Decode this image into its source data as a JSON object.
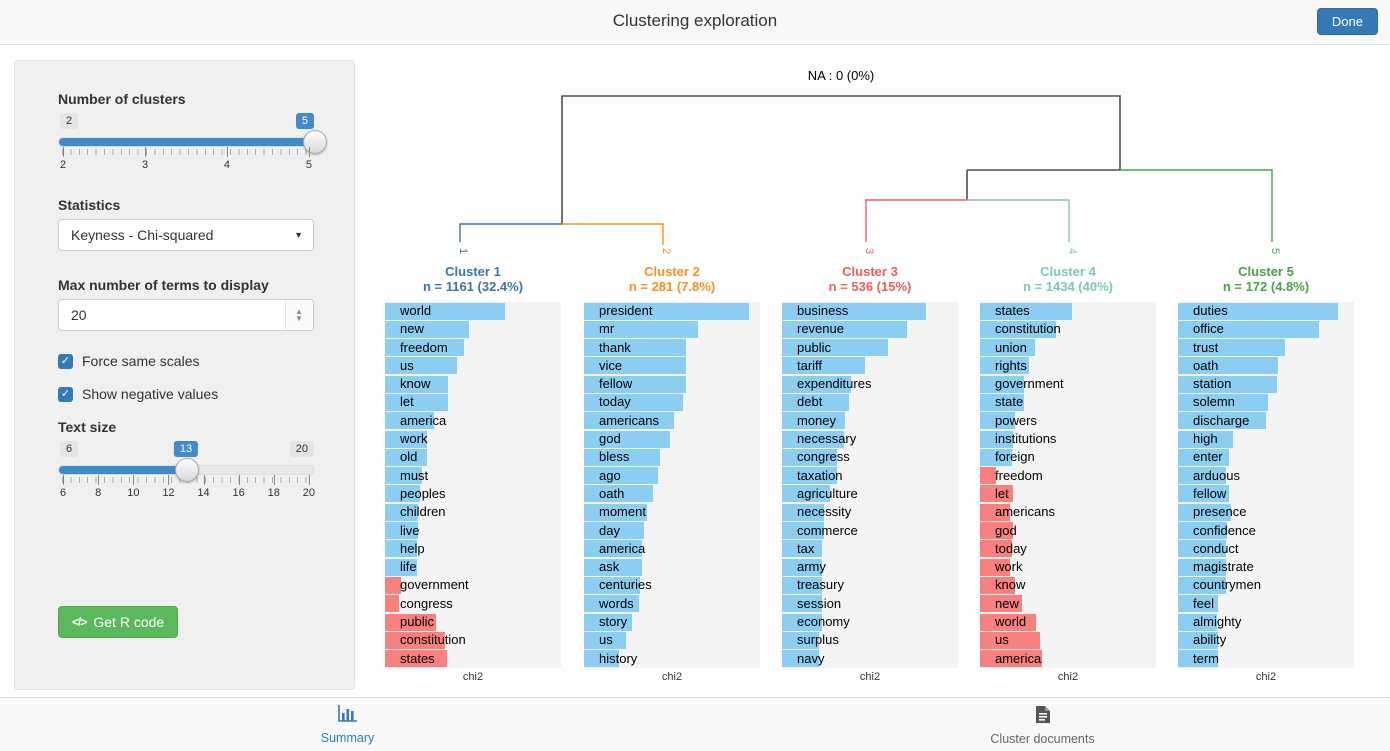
{
  "header": {
    "title": "Clustering exploration",
    "done_label": "Done"
  },
  "sidebar": {
    "clusters_slider": {
      "label": "Number of clusters",
      "min_badge": "2",
      "value_badge": "5",
      "tick_labels": [
        "2",
        "3",
        "4",
        "5"
      ],
      "fill_percent": 100,
      "handle_percent": 100
    },
    "statistics": {
      "label": "Statistics",
      "value": "Keyness - Chi-squared"
    },
    "max_terms": {
      "label": "Max number of terms to display",
      "value": "20"
    },
    "checkboxes": [
      {
        "label": "Force same scales",
        "checked": true
      },
      {
        "label": "Show negative values",
        "checked": true
      }
    ],
    "text_size_slider": {
      "label": "Text size",
      "min_badge": "6",
      "value_badge": "13",
      "max_badge": "20",
      "tick_labels": [
        "6",
        "8",
        "10",
        "12",
        "14",
        "16",
        "18",
        "20"
      ],
      "fill_percent": 50,
      "handle_percent": 50
    },
    "r_code_button": {
      "label": "Get R code",
      "icon": "</>"
    }
  },
  "dendrogram": {
    "na_label": "NA : 0 (0%)",
    "line_color": "#4d4d4d"
  },
  "chart_data": {
    "type": "bar",
    "xlabel": "chi2",
    "note": "horizontal keyness bar charts, one panel per cluster, shared x scale; values are approximate chi2 bar lengths as percent of panel width; negative values drawn red",
    "positive_color": "#8bcef2",
    "negative_color": "#f8807e",
    "clusters": [
      {
        "name": "Cluster 1",
        "n_label": "n = 1161 (32.4%)",
        "leaf": "1",
        "color": "#4273a9",
        "terms": [
          {
            "t": "world",
            "v": 68
          },
          {
            "t": "new",
            "v": 48
          },
          {
            "t": "freedom",
            "v": 45
          },
          {
            "t": "us",
            "v": 41
          },
          {
            "t": "know",
            "v": 36
          },
          {
            "t": "let",
            "v": 36
          },
          {
            "t": "america",
            "v": 28
          },
          {
            "t": "work",
            "v": 24
          },
          {
            "t": "old",
            "v": 24
          },
          {
            "t": "must",
            "v": 21
          },
          {
            "t": "peoples",
            "v": 20
          },
          {
            "t": "children",
            "v": 19
          },
          {
            "t": "live",
            "v": 19
          },
          {
            "t": "help",
            "v": 18
          },
          {
            "t": "life",
            "v": 18
          },
          {
            "t": "government",
            "v": -9
          },
          {
            "t": "congress",
            "v": -8
          },
          {
            "t": "public",
            "v": -29
          },
          {
            "t": "constitution",
            "v": -34
          },
          {
            "t": "states",
            "v": -35
          }
        ]
      },
      {
        "name": "Cluster 2",
        "n_label": "n = 281 (7.8%)",
        "leaf": "2",
        "color": "#f5911e",
        "terms": [
          {
            "t": "president",
            "v": 94
          },
          {
            "t": "mr",
            "v": 65
          },
          {
            "t": "thank",
            "v": 58
          },
          {
            "t": "vice",
            "v": 58
          },
          {
            "t": "fellow",
            "v": 58
          },
          {
            "t": "today",
            "v": 56
          },
          {
            "t": "americans",
            "v": 51
          },
          {
            "t": "god",
            "v": 49
          },
          {
            "t": "bless",
            "v": 43
          },
          {
            "t": "ago",
            "v": 42
          },
          {
            "t": "oath",
            "v": 39
          },
          {
            "t": "moment",
            "v": 36
          },
          {
            "t": "day",
            "v": 34
          },
          {
            "t": "america",
            "v": 33
          },
          {
            "t": "ask",
            "v": 33
          },
          {
            "t": "centuries",
            "v": 32
          },
          {
            "t": "words",
            "v": 31
          },
          {
            "t": "story",
            "v": 27
          },
          {
            "t": "us",
            "v": 24
          },
          {
            "t": "history",
            "v": 20
          }
        ]
      },
      {
        "name": "Cluster 3",
        "n_label": "n = 536 (15%)",
        "leaf": "3",
        "color": "#ee5c5c",
        "terms": [
          {
            "t": "business",
            "v": 82
          },
          {
            "t": "revenue",
            "v": 71
          },
          {
            "t": "public",
            "v": 60
          },
          {
            "t": "tariff",
            "v": 47
          },
          {
            "t": "expenditures",
            "v": 39
          },
          {
            "t": "debt",
            "v": 38
          },
          {
            "t": "money",
            "v": 36
          },
          {
            "t": "necessary",
            "v": 35
          },
          {
            "t": "congress",
            "v": 31
          },
          {
            "t": "taxation",
            "v": 31
          },
          {
            "t": "agriculture",
            "v": 27
          },
          {
            "t": "necessity",
            "v": 24
          },
          {
            "t": "commerce",
            "v": 24
          },
          {
            "t": "tax",
            "v": 23
          },
          {
            "t": "army",
            "v": 23
          },
          {
            "t": "treasury",
            "v": 23
          },
          {
            "t": "session",
            "v": 23
          },
          {
            "t": "economy",
            "v": 23
          },
          {
            "t": "surplus",
            "v": 21
          },
          {
            "t": "navy",
            "v": 21
          }
        ]
      },
      {
        "name": "Cluster 4",
        "n_label": "n = 1434 (40%)",
        "leaf": "4",
        "color": "#7ec6bc",
        "terms": [
          {
            "t": "states",
            "v": 52
          },
          {
            "t": "constitution",
            "v": 43
          },
          {
            "t": "union",
            "v": 31
          },
          {
            "t": "rights",
            "v": 28
          },
          {
            "t": "government",
            "v": 25
          },
          {
            "t": "state",
            "v": 25
          },
          {
            "t": "powers",
            "v": 20
          },
          {
            "t": "institutions",
            "v": 19
          },
          {
            "t": "foreign",
            "v": 18
          },
          {
            "t": "freedom",
            "v": -9
          },
          {
            "t": "let",
            "v": -19
          },
          {
            "t": "americans",
            "v": -17
          },
          {
            "t": "god",
            "v": -19
          },
          {
            "t": "today",
            "v": -18
          },
          {
            "t": "work",
            "v": -17
          },
          {
            "t": "know",
            "v": -20
          },
          {
            "t": "new",
            "v": -24
          },
          {
            "t": "world",
            "v": -32
          },
          {
            "t": "us",
            "v": -34
          },
          {
            "t": "america",
            "v": -35
          }
        ]
      },
      {
        "name": "Cluster 5",
        "n_label": "n = 172 (4.8%)",
        "leaf": "5",
        "color": "#4ba04e",
        "terms": [
          {
            "t": "duties",
            "v": 91
          },
          {
            "t": "office",
            "v": 80
          },
          {
            "t": "trust",
            "v": 61
          },
          {
            "t": "oath",
            "v": 57
          },
          {
            "t": "station",
            "v": 56
          },
          {
            "t": "solemn",
            "v": 51
          },
          {
            "t": "discharge",
            "v": 50
          },
          {
            "t": "high",
            "v": 31
          },
          {
            "t": "enter",
            "v": 29
          },
          {
            "t": "arduous",
            "v": 27
          },
          {
            "t": "fellow",
            "v": 29
          },
          {
            "t": "presence",
            "v": 30
          },
          {
            "t": "confidence",
            "v": 28
          },
          {
            "t": "conduct",
            "v": 27
          },
          {
            "t": "magistrate",
            "v": 27
          },
          {
            "t": "countrymen",
            "v": 27
          },
          {
            "t": "feel",
            "v": 23
          },
          {
            "t": "almighty",
            "v": 22
          },
          {
            "t": "ability",
            "v": 23
          },
          {
            "t": "term",
            "v": 23
          }
        ]
      }
    ]
  },
  "footer": {
    "tabs": [
      {
        "label": "Summary",
        "icon": "bar-chart-icon",
        "active": true
      },
      {
        "label": "Cluster documents",
        "icon": "document-icon",
        "active": false
      }
    ]
  }
}
